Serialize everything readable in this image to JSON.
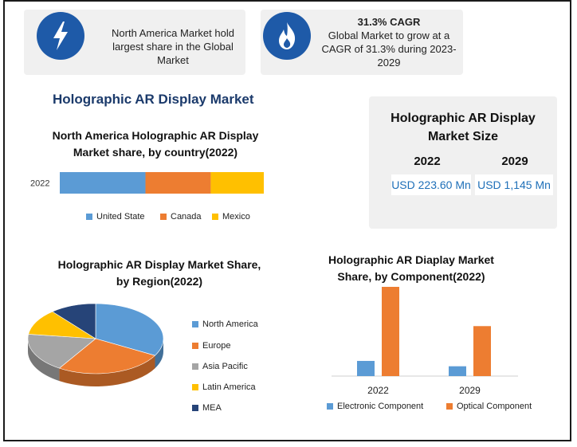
{
  "info_cards": {
    "card1": {
      "icon": "lightning-icon",
      "text_line1": "North America Market hold",
      "text_line2": "largest share in the Global",
      "text_line3": "Market"
    },
    "card2": {
      "icon": "flame-icon",
      "heading": "31.3% CAGR",
      "text_line1": "Global Market to grow at a",
      "text_line2": "CAGR of 31.3% during 2023-",
      "text_line3": "2029"
    }
  },
  "main_title": "Holographic AR Display Market",
  "market_size": {
    "title_line1": "Holographic AR Display",
    "title_line2": "Market Size",
    "year1": "2022",
    "year2": "2029",
    "value1": "USD 223.60 Mn",
    "value2": "USD 1,145 Mn"
  },
  "colors": {
    "blue": "#5b9bd5",
    "orange": "#ed7d31",
    "gray": "#a5a5a5",
    "yellow": "#ffc000",
    "navy": "#264478",
    "accent": "#1e5aa8"
  },
  "chart_data": [
    {
      "type": "bar",
      "orientation": "horizontal-stacked",
      "title_line1": "North America Holographic AR Display",
      "title_line2": "Market share, by country(2022)",
      "categories": [
        "2022"
      ],
      "series": [
        {
          "name": "United State",
          "values": [
            42
          ],
          "color": "#5b9bd5"
        },
        {
          "name": "Canada",
          "values": [
            32
          ],
          "color": "#ed7d31"
        },
        {
          "name": "Mexico",
          "values": [
            26
          ],
          "color": "#ffc000"
        }
      ],
      "legend": "bottom"
    },
    {
      "type": "pie",
      "title_line1": "Holographic AR Display Market Share,",
      "title_line2": "by Region(2022)",
      "labels": [
        "North America",
        "Europe",
        "Asia Pacific",
        "Latin America",
        "MEA"
      ],
      "values": [
        33,
        26,
        18,
        12,
        11
      ],
      "colors": [
        "#5b9bd5",
        "#ed7d31",
        "#a5a5a5",
        "#ffc000",
        "#264478"
      ],
      "legend": "right"
    },
    {
      "type": "bar",
      "title_line1": "Holographic AR Diaplay Market",
      "title_line2": "Share, by Component(2022)",
      "categories": [
        "2022",
        "2029"
      ],
      "series": [
        {
          "name": "Electronic Component",
          "values": [
            17,
            11
          ],
          "color": "#5b9bd5"
        },
        {
          "name": "Optical Component",
          "values": [
            100,
            56
          ],
          "color": "#ed7d31"
        }
      ],
      "ylim": [
        0,
        100
      ],
      "legend": "bottom"
    }
  ]
}
